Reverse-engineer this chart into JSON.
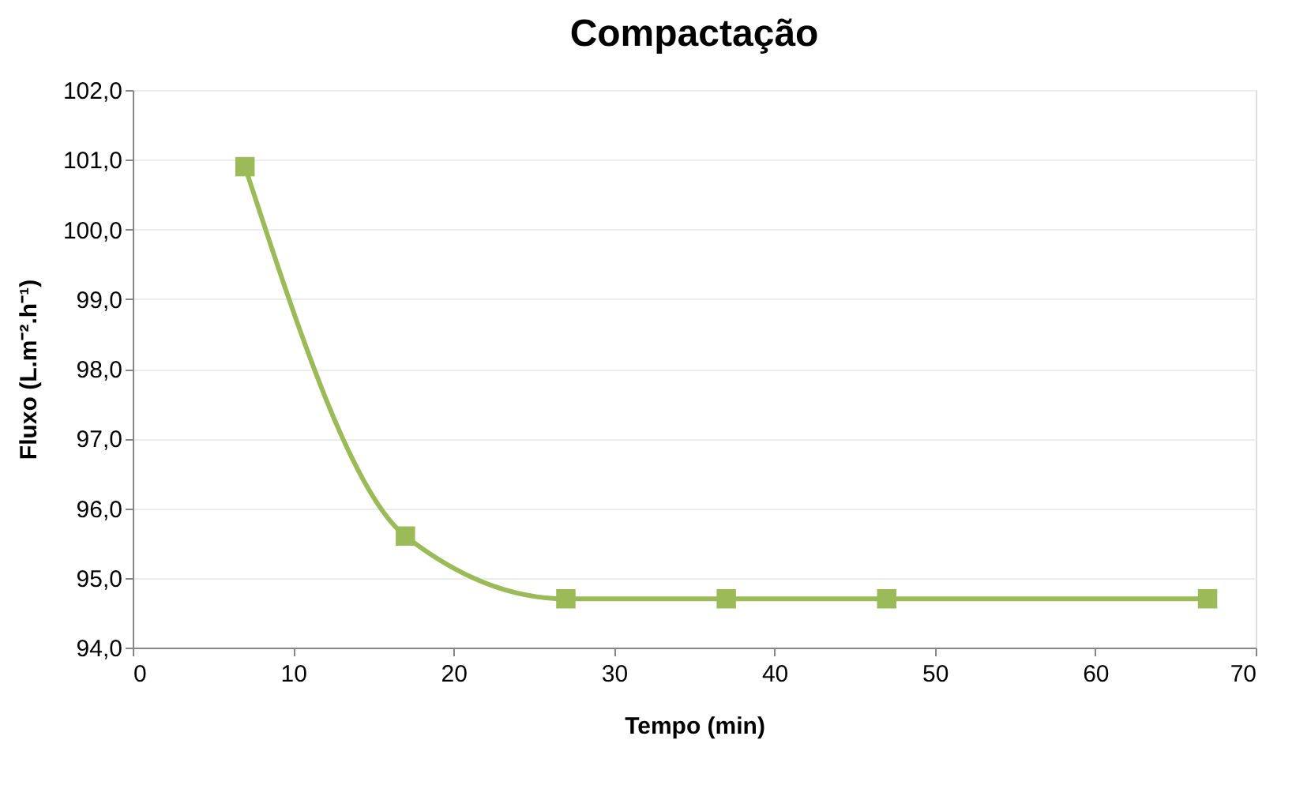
{
  "chart_data": {
    "type": "line",
    "title": "Compactação",
    "xlabel": "Tempo (min)",
    "ylabel": "Fluxo (L.m⁻².h⁻¹)",
    "x": [
      7,
      17,
      27,
      37,
      47,
      67
    ],
    "series": [
      {
        "color": "#9bbb59",
        "values": [
          100.9,
          95.6,
          94.7,
          94.7,
          94.7,
          94.7
        ]
      }
    ],
    "xlim": [
      0,
      70
    ],
    "xticks": [
      0,
      10,
      20,
      30,
      40,
      50,
      60,
      70
    ],
    "ylim": [
      94,
      102
    ],
    "yticks": [
      {
        "value": 94,
        "label": "94,0"
      },
      {
        "value": 95,
        "label": "95,0"
      },
      {
        "value": 96,
        "label": "96,0"
      },
      {
        "value": 97,
        "label": "97,0"
      },
      {
        "value": 98,
        "label": "98,0"
      },
      {
        "value": 99,
        "label": "99,0"
      },
      {
        "value": 100,
        "label": "100,0"
      },
      {
        "value": 101,
        "label": "101,0"
      },
      {
        "value": 102,
        "label": "102,0"
      }
    ],
    "grid": "y",
    "marker": "square",
    "line_style": "solid"
  }
}
